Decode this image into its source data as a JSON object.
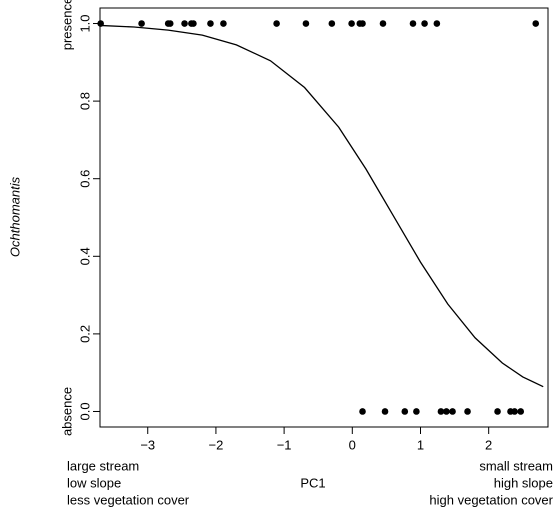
{
  "chart_data": {
    "type": "scatter",
    "ylabel": "Ochthomantis",
    "xlabel": "PC1",
    "y_level_labels": [
      {
        "value": 1,
        "label": "presence"
      },
      {
        "value": 0,
        "label": "absence"
      }
    ],
    "x_left_notes": [
      "large stream",
      "low slope",
      "less vegetation cover"
    ],
    "x_right_notes": [
      "small stream",
      "high slope",
      "high vegetation cover"
    ],
    "xlim": [
      -3.7,
      2.87
    ],
    "ylim": [
      -0.04,
      1.04
    ],
    "xticks": [
      {
        "value": -3,
        "label": "−3"
      },
      {
        "value": -2,
        "label": "−2"
      },
      {
        "value": -1,
        "label": "−1"
      },
      0,
      1,
      2
    ],
    "yticks": [
      {
        "value": 0,
        "label": "0.0"
      },
      0.2,
      0.4,
      0.6,
      0.8,
      {
        "value": 1,
        "label": "1.0"
      }
    ],
    "series": [
      {
        "color": "#000000",
        "x": [
          -3.69,
          -3.09,
          -2.7,
          -2.67,
          -2.46,
          -2.36,
          -2.33,
          -2.08,
          -1.89,
          -1.11,
          -0.68,
          -0.3,
          -0.01,
          0.11,
          0.15,
          0.45,
          0.89,
          1.06,
          1.24,
          2.69,
          0.15,
          0.48,
          0.77,
          0.94,
          1.3,
          1.38,
          1.47,
          1.69,
          2.13,
          2.32,
          2.38,
          2.47
        ],
        "values": [
          1,
          1,
          1,
          1,
          1,
          1,
          1,
          1,
          1,
          1,
          1,
          1,
          1,
          1,
          1,
          1,
          1,
          1,
          1,
          1,
          0,
          0,
          0,
          0,
          0,
          0,
          0,
          0,
          0,
          0,
          0,
          0
        ]
      }
    ],
    "curve": {
      "color": "#000000",
      "x": [
        -3.7,
        -3.2,
        -2.7,
        -2.2,
        -1.7,
        -1.2,
        -0.7,
        -0.2,
        0.2,
        0.6,
        1.0,
        1.4,
        1.8,
        2.2,
        2.5,
        2.8
      ],
      "values": [
        0.995,
        0.991,
        0.983,
        0.97,
        0.945,
        0.904,
        0.835,
        0.733,
        0.625,
        0.505,
        0.385,
        0.277,
        0.19,
        0.125,
        0.089,
        0.064
      ]
    }
  }
}
